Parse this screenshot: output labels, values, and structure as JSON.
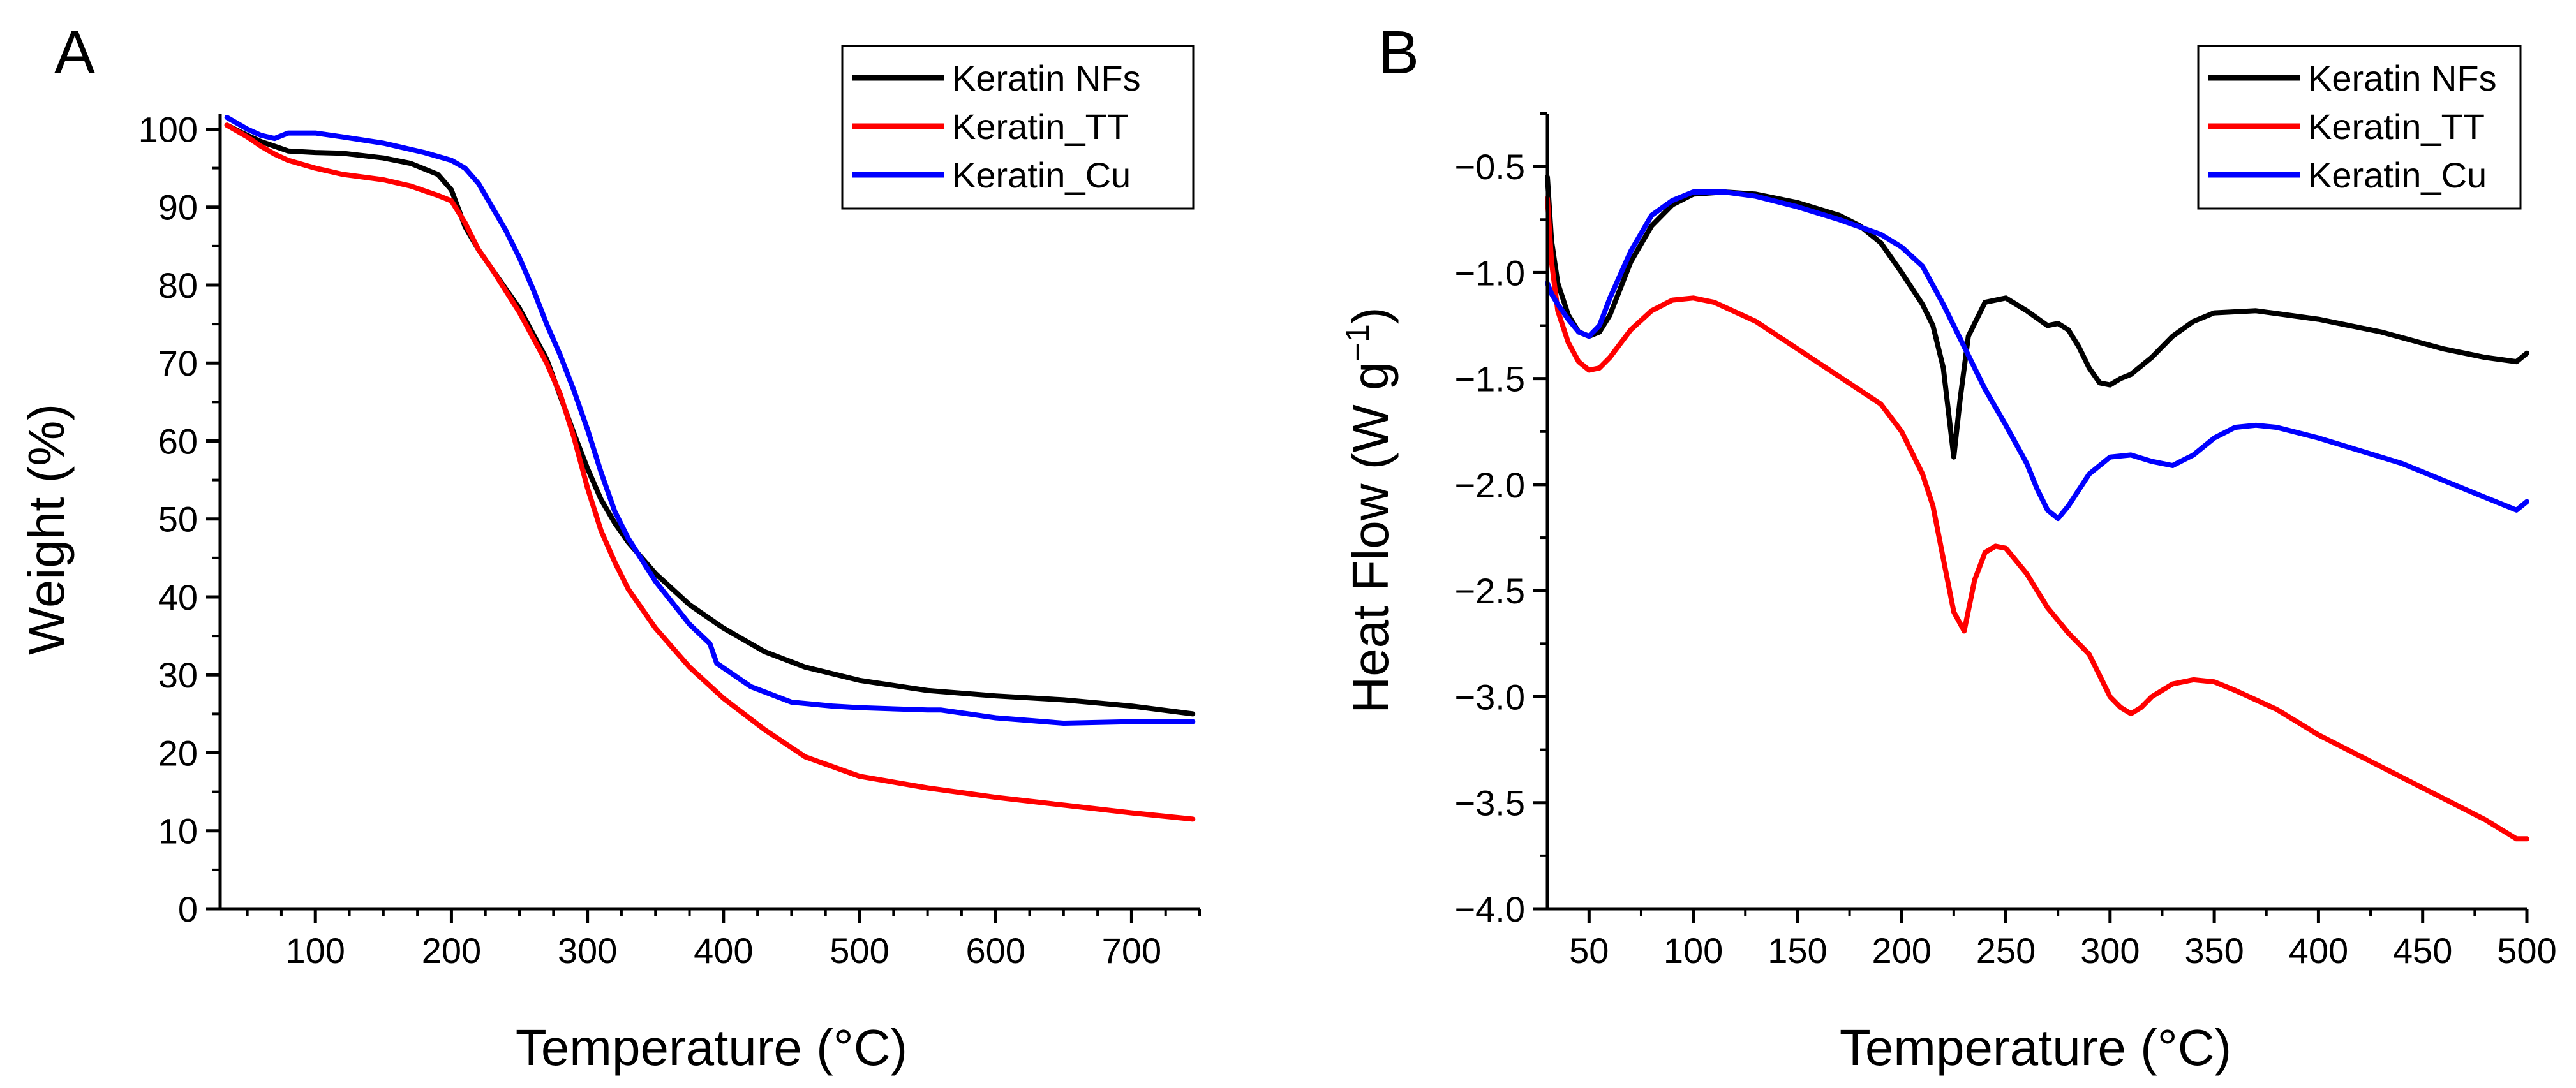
{
  "chart_data": [
    {
      "type": "line",
      "panel_label": "A",
      "xlabel": "Temperature (°C)",
      "ylabel": "Weight (%)",
      "xlim": [
        30,
        750
      ],
      "ylim": [
        0,
        102
      ],
      "xticks": [
        100,
        200,
        300,
        400,
        500,
        600,
        700
      ],
      "yticks": [
        0,
        10,
        20,
        30,
        40,
        50,
        60,
        70,
        80,
        90,
        100
      ],
      "legend_position": "top-right",
      "series": [
        {
          "name": "Keratin NFs",
          "color": "#000000",
          "x": [
            35,
            50,
            60,
            70,
            80,
            100,
            120,
            150,
            170,
            190,
            200,
            210,
            220,
            230,
            250,
            270,
            290,
            300,
            310,
            320,
            330,
            350,
            375,
            400,
            430,
            460,
            500,
            550,
            600,
            650,
            700,
            745
          ],
          "y": [
            100.5,
            99.2,
            98.4,
            97.8,
            97.2,
            97.0,
            96.9,
            96.3,
            95.6,
            94.2,
            92.2,
            87.5,
            84.5,
            82.0,
            77.0,
            70.5,
            61.0,
            56.5,
            52.5,
            49.5,
            47.0,
            43.0,
            39.0,
            36.0,
            33.0,
            31.0,
            29.3,
            28.0,
            27.3,
            26.8,
            26.0,
            25.0
          ]
        },
        {
          "name": "Keratin_TT",
          "color": "#ff0000",
          "x": [
            35,
            50,
            60,
            70,
            80,
            100,
            120,
            150,
            170,
            190,
            200,
            210,
            220,
            230,
            250,
            270,
            280,
            290,
            300,
            310,
            320,
            330,
            350,
            375,
            400,
            430,
            460,
            500,
            550,
            600,
            650,
            700,
            745
          ],
          "y": [
            100.5,
            99.0,
            97.8,
            96.8,
            96.0,
            95.0,
            94.2,
            93.5,
            92.7,
            91.5,
            90.8,
            88.0,
            84.5,
            82.0,
            76.5,
            70.0,
            66.0,
            60.5,
            54.0,
            48.5,
            44.5,
            41.0,
            36.0,
            31.0,
            27.0,
            23.0,
            19.5,
            17.0,
            15.5,
            14.3,
            13.3,
            12.3,
            11.5
          ]
        },
        {
          "name": "Keratin_Cu",
          "color": "#0000ff",
          "x": [
            35,
            50,
            60,
            70,
            80,
            100,
            120,
            150,
            180,
            200,
            210,
            220,
            230,
            240,
            250,
            260,
            270,
            280,
            290,
            300,
            310,
            320,
            330,
            350,
            375,
            390,
            395,
            420,
            450,
            480,
            500,
            550,
            560,
            600,
            650,
            700,
            745
          ],
          "y": [
            101.5,
            100.0,
            99.2,
            98.8,
            99.5,
            99.5,
            99.0,
            98.2,
            97.0,
            96.0,
            95.0,
            93.0,
            90.0,
            87.0,
            83.5,
            79.5,
            75.0,
            71.0,
            66.5,
            61.5,
            56.0,
            51.0,
            47.5,
            42.0,
            36.5,
            34.0,
            31.5,
            28.5,
            26.5,
            26.0,
            25.8,
            25.5,
            25.5,
            24.5,
            23.8,
            24.0,
            24.0
          ]
        }
      ]
    },
    {
      "type": "line",
      "panel_label": "B",
      "xlabel": "Temperature (°C)",
      "ylabel": "Heat Flow (W g",
      "ylabel_superscript": "−1",
      "ylabel_close": ")",
      "xlim": [
        30,
        500
      ],
      "ylim": [
        -4.0,
        -0.25
      ],
      "xticks": [
        50,
        100,
        150,
        200,
        250,
        300,
        350,
        400,
        450,
        500
      ],
      "yticks": [
        -4.0,
        -3.5,
        -3.0,
        -2.5,
        -2.0,
        -1.5,
        -1.0,
        -0.5
      ],
      "ytick_labels": [
        "−4.0",
        "−3.5",
        "−3.0",
        "−2.5",
        "−2.0",
        "−1.5",
        "−1.0",
        "−0.5"
      ],
      "legend_position": "top-right",
      "series": [
        {
          "name": "Keratin NFs",
          "color": "#000000",
          "x": [
            30,
            32,
            35,
            40,
            45,
            50,
            55,
            60,
            70,
            80,
            90,
            100,
            115,
            130,
            150,
            170,
            180,
            190,
            200,
            210,
            215,
            220,
            225,
            228,
            232,
            240,
            250,
            260,
            270,
            275,
            280,
            285,
            290,
            295,
            300,
            305,
            310,
            320,
            330,
            340,
            350,
            370,
            400,
            430,
            460,
            480,
            495,
            500
          ],
          "y": [
            -0.55,
            -0.85,
            -1.05,
            -1.2,
            -1.28,
            -1.3,
            -1.28,
            -1.2,
            -0.95,
            -0.78,
            -0.68,
            -0.63,
            -0.62,
            -0.63,
            -0.67,
            -0.73,
            -0.78,
            -0.86,
            -1.0,
            -1.15,
            -1.25,
            -1.45,
            -1.87,
            -1.6,
            -1.3,
            -1.14,
            -1.12,
            -1.18,
            -1.25,
            -1.24,
            -1.27,
            -1.35,
            -1.45,
            -1.52,
            -1.53,
            -1.5,
            -1.48,
            -1.4,
            -1.3,
            -1.23,
            -1.19,
            -1.18,
            -1.22,
            -1.28,
            -1.36,
            -1.4,
            -1.42,
            -1.38
          ]
        },
        {
          "name": "Keratin_TT",
          "color": "#ff0000",
          "x": [
            30,
            32,
            35,
            40,
            45,
            50,
            55,
            60,
            70,
            80,
            90,
            100,
            110,
            130,
            150,
            170,
            190,
            200,
            210,
            215,
            220,
            225,
            230,
            235,
            240,
            245,
            250,
            260,
            270,
            280,
            290,
            295,
            300,
            305,
            310,
            315,
            320,
            330,
            340,
            350,
            360,
            380,
            400,
            420,
            440,
            460,
            480,
            495,
            500
          ],
          "y": [
            -0.65,
            -0.95,
            -1.18,
            -1.33,
            -1.42,
            -1.46,
            -1.45,
            -1.4,
            -1.27,
            -1.18,
            -1.13,
            -1.12,
            -1.14,
            -1.23,
            -1.36,
            -1.49,
            -1.62,
            -1.75,
            -1.95,
            -2.1,
            -2.35,
            -2.6,
            -2.69,
            -2.45,
            -2.32,
            -2.29,
            -2.3,
            -2.42,
            -2.58,
            -2.7,
            -2.8,
            -2.9,
            -3.0,
            -3.05,
            -3.08,
            -3.05,
            -3.0,
            -2.94,
            -2.92,
            -2.93,
            -2.97,
            -3.06,
            -3.18,
            -3.28,
            -3.38,
            -3.48,
            -3.58,
            -3.67,
            -3.67
          ]
        },
        {
          "name": "Keratin_Cu",
          "color": "#0000ff",
          "x": [
            30,
            32,
            35,
            40,
            45,
            50,
            55,
            60,
            70,
            80,
            90,
            100,
            115,
            130,
            150,
            170,
            190,
            200,
            210,
            220,
            230,
            240,
            250,
            260,
            265,
            270,
            275,
            280,
            290,
            300,
            310,
            320,
            330,
            340,
            350,
            360,
            370,
            380,
            400,
            420,
            440,
            460,
            480,
            495,
            500
          ],
          "y": [
            -1.05,
            -1.1,
            -1.15,
            -1.22,
            -1.28,
            -1.3,
            -1.25,
            -1.12,
            -0.9,
            -0.73,
            -0.66,
            -0.62,
            -0.62,
            -0.64,
            -0.69,
            -0.75,
            -0.82,
            -0.88,
            -0.97,
            -1.15,
            -1.35,
            -1.55,
            -1.72,
            -1.9,
            -2.02,
            -2.12,
            -2.16,
            -2.1,
            -1.95,
            -1.87,
            -1.86,
            -1.89,
            -1.91,
            -1.86,
            -1.78,
            -1.73,
            -1.72,
            -1.73,
            -1.78,
            -1.84,
            -1.9,
            -1.98,
            -2.06,
            -2.12,
            -2.08
          ]
        }
      ]
    }
  ]
}
